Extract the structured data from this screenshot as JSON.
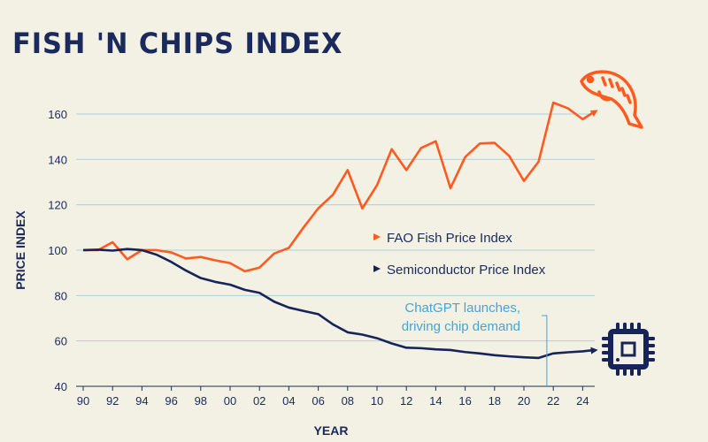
{
  "chart_data": {
    "type": "line",
    "title": "FISH 'N CHIPS INDEX",
    "xlabel": "YEAR",
    "ylabel": "PRICE INDEX",
    "xlim": [
      1990,
      2025
    ],
    "ylim": [
      40,
      170
    ],
    "x_ticks": [
      "90",
      "92",
      "94",
      "96",
      "98",
      "00",
      "02",
      "04",
      "06",
      "08",
      "10",
      "12",
      "14",
      "16",
      "18",
      "20",
      "22",
      "24"
    ],
    "y_ticks": [
      40,
      60,
      80,
      100,
      120,
      140,
      160
    ],
    "grid": "horizontal",
    "legend_placement": "center-right",
    "x": [
      1990,
      1991,
      1992,
      1993,
      1994,
      1995,
      1996,
      1997,
      1998,
      1999,
      2000,
      2001,
      2002,
      2003,
      2004,
      2005,
      2006,
      2007,
      2008,
      2009,
      2010,
      2011,
      2012,
      2013,
      2014,
      2015,
      2016,
      2017,
      2018,
      2019,
      2020,
      2021,
      2022,
      2023,
      2024,
      2024.8
    ],
    "series": [
      {
        "name": "FAO Fish Price Index",
        "color": "#ff5a1f",
        "values": [
          100,
          100,
          103.5,
          96,
          100,
          100,
          99,
          96.3,
          97,
          95.5,
          94.3,
          90.7,
          92.3,
          98.5,
          101,
          110,
          118.4,
          124.4,
          135.3,
          118.4,
          128.6,
          144.5,
          135.3,
          145,
          148,
          127.3,
          141,
          147,
          147.3,
          141.5,
          130.5,
          139,
          165,
          162.5,
          157.7,
          161
        ]
      },
      {
        "name": "Semiconductor Price Index",
        "color": "#17245a",
        "values": [
          100,
          100.2,
          99.8,
          100.5,
          100,
          98,
          94.8,
          91,
          87.7,
          86,
          84.8,
          82.5,
          81.2,
          77.3,
          74.7,
          73.2,
          71.8,
          67.3,
          63.8,
          62.8,
          61.2,
          58.9,
          57,
          56.8,
          56.3,
          56,
          55.1,
          54.5,
          53.7,
          53.2,
          52.8,
          52.5,
          54.5,
          55,
          55.4,
          56
        ]
      }
    ],
    "annotations": [
      {
        "text_lines": [
          "ChatGPT launches,",
          "driving chip demand"
        ],
        "x": 2021.5,
        "color": "#4aa3d0"
      }
    ],
    "icons": [
      "fish-icon",
      "microchip-icon"
    ]
  }
}
